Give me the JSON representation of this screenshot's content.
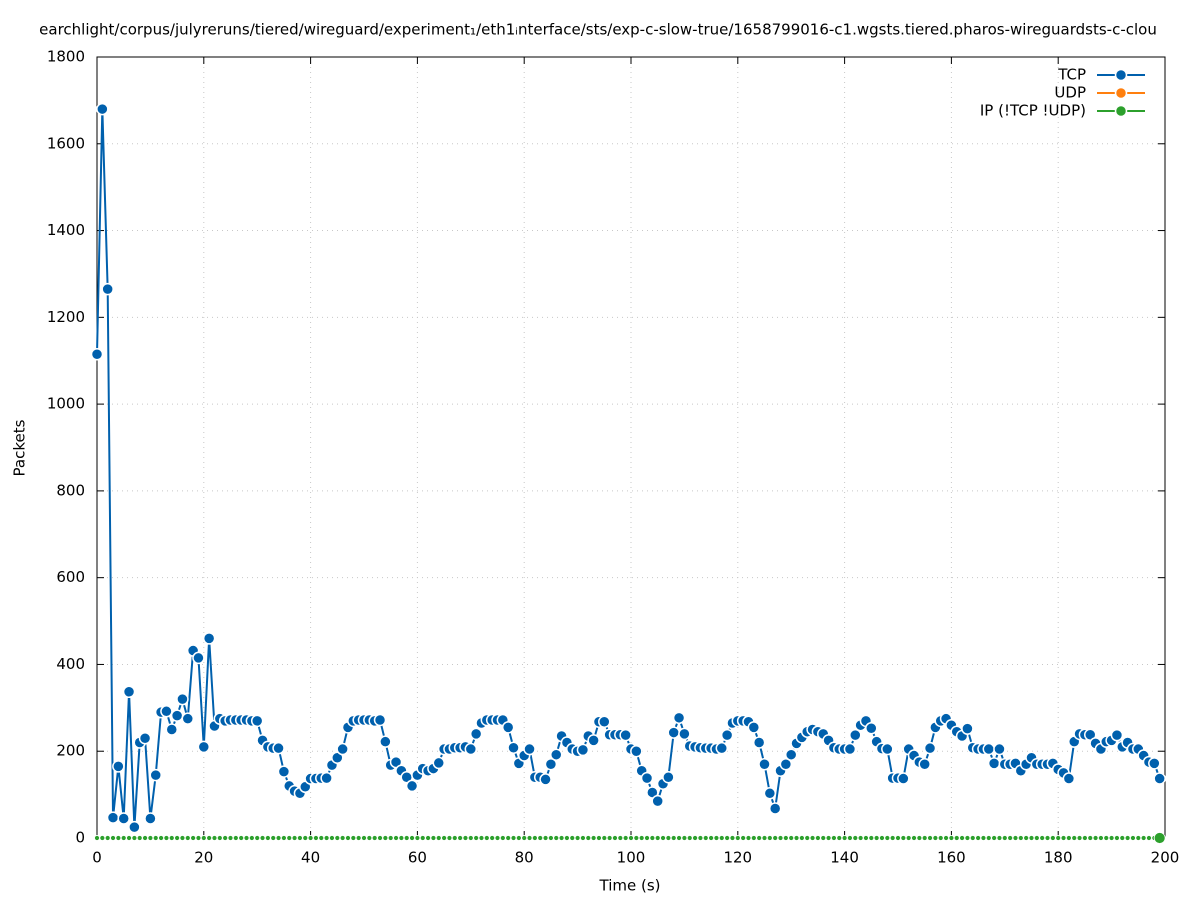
{
  "chart_data": {
    "type": "line",
    "title": "earchlight/corpus/julyreruns/tiered/wireguard/experiment₁/eth1ᵢnterface/sts/exp-c-slow-true/1658799016-c1.wgsts.tiered.pharos-wireguardsts-c-clou",
    "xlabel": "Time (s)",
    "ylabel": "Packets",
    "xlim": [
      0,
      200
    ],
    "xticks": [
      0,
      20,
      40,
      60,
      80,
      100,
      120,
      140,
      160,
      180,
      200
    ],
    "ylim": [
      0,
      1800
    ],
    "yticks": [
      0,
      200,
      400,
      600,
      800,
      1000,
      1200,
      1400,
      1600,
      1800
    ],
    "grid": true,
    "legend": "top-right",
    "x": [
      0,
      1,
      2,
      3,
      4,
      5,
      6,
      7,
      8,
      9,
      10,
      11,
      12,
      13,
      14,
      15,
      16,
      17,
      18,
      19,
      20,
      21,
      22,
      23,
      24,
      25,
      26,
      27,
      28,
      29,
      30,
      31,
      32,
      33,
      34,
      35,
      36,
      37,
      38,
      39,
      40,
      41,
      42,
      43,
      44,
      45,
      46,
      47,
      48,
      49,
      50,
      51,
      52,
      53,
      54,
      55,
      56,
      57,
      58,
      59,
      60,
      61,
      62,
      63,
      64,
      65,
      66,
      67,
      68,
      69,
      70,
      71,
      72,
      73,
      74,
      75,
      76,
      77,
      78,
      79,
      80,
      81,
      82,
      83,
      84,
      85,
      86,
      87,
      88,
      89,
      90,
      91,
      92,
      93,
      94,
      95,
      96,
      97,
      98,
      99,
      100,
      101,
      102,
      103,
      104,
      105,
      106,
      107,
      108,
      109,
      110,
      111,
      112,
      113,
      114,
      115,
      116,
      117,
      118,
      119,
      120,
      121,
      122,
      123,
      124,
      125,
      126,
      127,
      128,
      129,
      130,
      131,
      132,
      133,
      134,
      135,
      136,
      137,
      138,
      139,
      140,
      141,
      142,
      143,
      144,
      145,
      146,
      147,
      148,
      149,
      150,
      151,
      152,
      153,
      154,
      155,
      156,
      157,
      158,
      159,
      160,
      161,
      162,
      163,
      164,
      165,
      166,
      167,
      168,
      169,
      170,
      171,
      172,
      173,
      174,
      175,
      176,
      177,
      178,
      179,
      180,
      181,
      182,
      183,
      184,
      185,
      186,
      187,
      188,
      189,
      190,
      191,
      192,
      193,
      194,
      195,
      196,
      197,
      198,
      199
    ],
    "series": [
      {
        "name": "TCP",
        "color": "#0060ad",
        "values": [
          1115,
          1680,
          1265,
          47,
          165,
          45,
          337,
          25,
          220,
          230,
          45,
          145,
          290,
          292,
          250,
          282,
          320,
          275,
          432,
          415,
          210,
          460,
          258,
          275,
          270,
          272,
          272,
          272,
          272,
          270,
          270,
          225,
          210,
          207,
          207,
          153,
          120,
          108,
          103,
          118,
          137,
          137,
          138,
          138,
          168,
          185,
          205,
          255,
          270,
          272,
          272,
          272,
          270,
          272,
          222,
          168,
          175,
          155,
          140,
          120,
          145,
          160,
          155,
          160,
          173,
          205,
          205,
          208,
          208,
          210,
          205,
          240,
          265,
          272,
          272,
          272,
          272,
          255,
          208,
          172,
          190,
          205,
          140,
          140,
          135,
          170,
          192,
          235,
          220,
          205,
          200,
          203,
          235,
          225,
          268,
          268,
          238,
          238,
          238,
          237,
          205,
          200,
          155,
          138,
          105,
          85,
          125,
          140,
          243,
          277,
          240,
          212,
          210,
          208,
          207,
          207,
          205,
          207,
          237,
          265,
          270,
          270,
          268,
          255,
          220,
          170,
          103,
          68,
          155,
          170,
          192,
          218,
          232,
          245,
          250,
          245,
          240,
          225,
          208,
          205,
          205,
          205,
          237,
          260,
          270,
          253,
          222,
          206,
          205,
          138,
          138,
          137,
          205,
          190,
          175,
          170,
          207,
          255,
          270,
          275,
          260,
          245,
          235,
          252,
          208,
          205,
          205,
          205,
          172,
          205,
          170,
          170,
          172,
          155,
          170,
          185,
          170,
          170,
          170,
          172,
          158,
          150,
          137,
          222,
          240,
          238,
          238,
          218,
          205,
          222,
          225,
          237,
          210,
          220,
          205,
          205,
          190,
          175,
          172,
          137
        ]
      },
      {
        "name": "UDP",
        "color": "#ff7f0e",
        "values": [
          0,
          0,
          0,
          0,
          0,
          0,
          0,
          0,
          0,
          0,
          0,
          0,
          0,
          0,
          0,
          0,
          0,
          0,
          0,
          0,
          0,
          0,
          0,
          0,
          0,
          0,
          0,
          0,
          0,
          0,
          0,
          0,
          0,
          0,
          0,
          0,
          0,
          0,
          0,
          0,
          0,
          0,
          0,
          0,
          0,
          0,
          0,
          0,
          0,
          0,
          0,
          0,
          0,
          0,
          0,
          0,
          0,
          0,
          0,
          0,
          0,
          0,
          0,
          0,
          0,
          0,
          0,
          0,
          0,
          0,
          0,
          0,
          0,
          0,
          0,
          0,
          0,
          0,
          0,
          0,
          0,
          0,
          0,
          0,
          0,
          0,
          0,
          0,
          0,
          0,
          0,
          0,
          0,
          0,
          0,
          0,
          0,
          0,
          0,
          0,
          0,
          0,
          0,
          0,
          0,
          0,
          0,
          0,
          0,
          0,
          0,
          0,
          0,
          0,
          0,
          0,
          0,
          0,
          0,
          0,
          0,
          0,
          0,
          0,
          0,
          0,
          0,
          0,
          0,
          0,
          0,
          0,
          0,
          0,
          0,
          0,
          0,
          0,
          0,
          0,
          0,
          0,
          0,
          0,
          0,
          0,
          0,
          0,
          0,
          0,
          0,
          0,
          0,
          0,
          0,
          0,
          0,
          0,
          0,
          0,
          0,
          0,
          0,
          0,
          0,
          0,
          0,
          0,
          0,
          0,
          0,
          0,
          0,
          0,
          0,
          0,
          0,
          0,
          0,
          0,
          0,
          0,
          0,
          0,
          0,
          0,
          0,
          0,
          0,
          0,
          0,
          0,
          0,
          0,
          0,
          0,
          0,
          0,
          0,
          0
        ]
      },
      {
        "name": "IP (!TCP  !UDP)",
        "color": "#2ca02c",
        "values": [
          0,
          0,
          0,
          0,
          0,
          0,
          0,
          0,
          0,
          0,
          0,
          0,
          0,
          0,
          0,
          0,
          0,
          0,
          0,
          0,
          0,
          0,
          0,
          0,
          0,
          0,
          0,
          0,
          0,
          0,
          0,
          0,
          0,
          0,
          0,
          0,
          0,
          0,
          0,
          0,
          0,
          0,
          0,
          0,
          0,
          0,
          0,
          0,
          0,
          0,
          0,
          0,
          0,
          0,
          0,
          0,
          0,
          0,
          0,
          0,
          0,
          0,
          0,
          0,
          0,
          0,
          0,
          0,
          0,
          0,
          0,
          0,
          0,
          0,
          0,
          0,
          0,
          0,
          0,
          0,
          0,
          0,
          0,
          0,
          0,
          0,
          0,
          0,
          0,
          0,
          0,
          0,
          0,
          0,
          0,
          0,
          0,
          0,
          0,
          0,
          0,
          0,
          0,
          0,
          0,
          0,
          0,
          0,
          0,
          0,
          0,
          0,
          0,
          0,
          0,
          0,
          0,
          0,
          0,
          0,
          0,
          0,
          0,
          0,
          0,
          0,
          0,
          0,
          0,
          0,
          0,
          0,
          0,
          0,
          0,
          0,
          0,
          0,
          0,
          0,
          0,
          0,
          0,
          0,
          0,
          0,
          0,
          0,
          0,
          0,
          0,
          0,
          0,
          0,
          0,
          0,
          0,
          0,
          0,
          0,
          0,
          0,
          0,
          0,
          0,
          0,
          0,
          0,
          0,
          0,
          0,
          0,
          0,
          0,
          0,
          0,
          0,
          0,
          0,
          0,
          0,
          0,
          0,
          0,
          0,
          0,
          0,
          0,
          0,
          0,
          0,
          0,
          0,
          0,
          0,
          0,
          0,
          0,
          0,
          0
        ]
      }
    ]
  }
}
